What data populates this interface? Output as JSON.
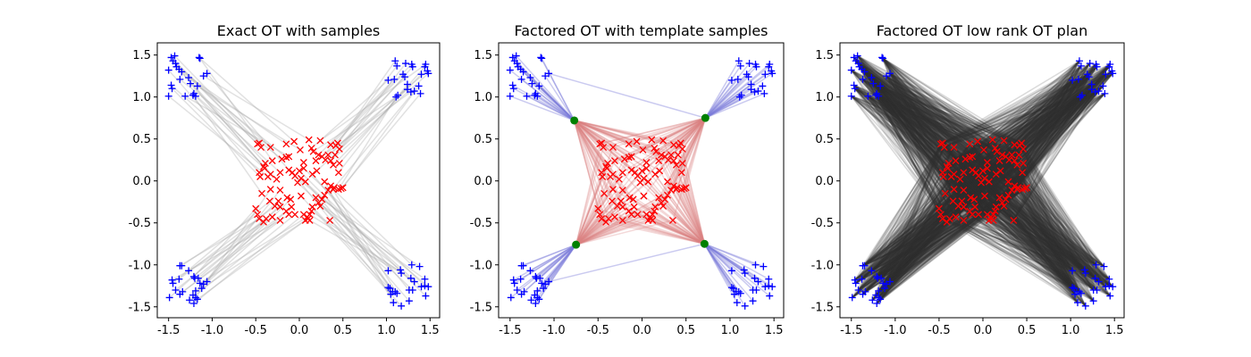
{
  "chart_data": [
    {
      "type": "scatter",
      "title": "Exact OT with samples",
      "plan": "exact",
      "xlim": [
        -1.63,
        1.61
      ],
      "ylim": [
        -1.63,
        1.645
      ],
      "xticks": [
        "-1.5",
        "-1.0",
        "-0.5",
        "0.0",
        "0.5",
        "1.0",
        "1.5"
      ],
      "yticks": [
        "-1.5",
        "-1.0",
        "-0.5",
        "0.0",
        "0.5",
        "1.0",
        "1.5"
      ],
      "grid": false
    },
    {
      "type": "scatter",
      "title": "Factored OT with template samples",
      "plan": "factored",
      "xlim": [
        -1.63,
        1.61
      ],
      "ylim": [
        -1.63,
        1.645
      ],
      "xticks": [
        "-1.5",
        "-1.0",
        "-0.5",
        "0.0",
        "0.5",
        "1.0",
        "1.5"
      ],
      "yticks": [
        "-1.5",
        "-1.0",
        "-0.5",
        "0.0",
        "0.5",
        "1.0",
        "1.5"
      ],
      "grid": false
    },
    {
      "type": "scatter",
      "title": "Factored OT low rank OT plan",
      "plan": "lowrank",
      "xlim": [
        -1.63,
        1.61
      ],
      "ylim": [
        -1.63,
        1.645
      ],
      "xticks": [
        "-1.5",
        "-1.0",
        "-0.5",
        "0.0",
        "0.5",
        "1.0",
        "1.5"
      ],
      "yticks": [
        "-1.5",
        "-1.0",
        "-0.5",
        "0.0",
        "0.5",
        "1.0",
        "1.5"
      ],
      "grid": false
    }
  ],
  "colors": {
    "source": "#0000ff",
    "target": "#ff0000",
    "template": "#008000",
    "exact_line": "#aaaaaa",
    "source_template_line": "#7b7bd9",
    "template_target_line": "#d98080",
    "lowrank_line": "#333333"
  },
  "template_points": [
    [
      -0.77,
      0.72
    ],
    [
      0.72,
      0.75
    ],
    [
      -0.75,
      -0.76
    ],
    [
      0.71,
      -0.75
    ]
  ],
  "template_outliers": [
    {
      "source": [
        -1.06,
        1.28
      ],
      "template": 1
    },
    {
      "source": [
        -1.06,
        -1.2
      ],
      "template": 3
    }
  ],
  "source_points": [
    [
      -1.47,
      1.47
    ],
    [
      -1.43,
      1.49
    ],
    [
      -1.45,
      1.43
    ],
    [
      -1.42,
      1.4
    ],
    [
      -1.41,
      1.36
    ],
    [
      -1.38,
      1.33
    ],
    [
      -1.5,
      1.32
    ],
    [
      -1.35,
      1.3
    ],
    [
      -1.15,
      1.47
    ],
    [
      -1.14,
      1.46
    ],
    [
      -1.47,
      1.14
    ],
    [
      -1.46,
      1.1
    ],
    [
      -1.5,
      1.01
    ],
    [
      -1.37,
      1.21
    ],
    [
      -1.27,
      1.23
    ],
    [
      -1.25,
      1.16
    ],
    [
      -1.31,
      1.01
    ],
    [
      -1.21,
      1.04
    ],
    [
      -1.19,
      1.01
    ],
    [
      -1.17,
      1.13
    ],
    [
      -1.1,
      1.25
    ],
    [
      -1.06,
      1.28
    ],
    [
      -1.22,
      1.02
    ],
    [
      1.1,
      1.43
    ],
    [
      1.12,
      1.37
    ],
    [
      1.22,
      1.4
    ],
    [
      1.29,
      1.39
    ],
    [
      1.3,
      1.36
    ],
    [
      1.45,
      1.39
    ],
    [
      1.44,
      1.36
    ],
    [
      1.47,
      1.31
    ],
    [
      1.48,
      1.28
    ],
    [
      1.4,
      1.27
    ],
    [
      1.19,
      1.27
    ],
    [
      1.21,
      1.24
    ],
    [
      1.02,
      1.2
    ],
    [
      1.09,
      1.21
    ],
    [
      1.24,
      1.15
    ],
    [
      1.24,
      1.09
    ],
    [
      1.28,
      1.06
    ],
    [
      1.37,
      1.13
    ],
    [
      1.39,
      1.04
    ],
    [
      1.13,
      1.02
    ],
    [
      1.11,
      1.0
    ],
    [
      1.32,
      1.07
    ],
    [
      -1.37,
      -1.01
    ],
    [
      -1.35,
      -1.01
    ],
    [
      -1.27,
      -1.07
    ],
    [
      -1.21,
      -1.14
    ],
    [
      -1.16,
      -1.16
    ],
    [
      -1.2,
      -1.16
    ],
    [
      -1.46,
      -1.18
    ],
    [
      -1.45,
      -1.22
    ],
    [
      -1.38,
      -1.17
    ],
    [
      -1.42,
      -1.3
    ],
    [
      -1.34,
      -1.32
    ],
    [
      -1.37,
      -1.35
    ],
    [
      -1.49,
      -1.39
    ],
    [
      -1.26,
      -1.42
    ],
    [
      -1.22,
      -1.36
    ],
    [
      -1.19,
      -1.39
    ],
    [
      -1.17,
      -1.41
    ],
    [
      -1.21,
      -1.46
    ],
    [
      -1.19,
      -1.31
    ],
    [
      -1.1,
      -1.23
    ],
    [
      -1.06,
      -1.2
    ],
    [
      -1.12,
      -1.28
    ],
    [
      -1.14,
      -1.22
    ],
    [
      1.02,
      -1.07
    ],
    [
      1.16,
      -1.06
    ],
    [
      1.17,
      -1.1
    ],
    [
      1.29,
      -1.0
    ],
    [
      1.38,
      -1.02
    ],
    [
      1.44,
      -1.17
    ],
    [
      1.28,
      -1.16
    ],
    [
      1.32,
      -1.2
    ],
    [
      1.02,
      -1.27
    ],
    [
      1.04,
      -1.28
    ],
    [
      1.07,
      -1.32
    ],
    [
      1.1,
      -1.32
    ],
    [
      1.12,
      -1.34
    ],
    [
      1.08,
      -1.45
    ],
    [
      1.17,
      -1.49
    ],
    [
      1.26,
      -1.43
    ],
    [
      1.26,
      -1.3
    ],
    [
      1.3,
      -1.3
    ],
    [
      1.4,
      -1.26
    ],
    [
      1.44,
      -1.25
    ],
    [
      1.48,
      -1.26
    ],
    [
      1.45,
      -1.37
    ],
    [
      1.05,
      -1.35
    ]
  ],
  "target_points": [
    [
      -0.48,
      0.44
    ],
    [
      -0.46,
      0.45
    ],
    [
      -0.33,
      0.4
    ],
    [
      -0.15,
      0.44
    ],
    [
      -0.06,
      0.47
    ],
    [
      0.01,
      0.37
    ],
    [
      0.11,
      0.49
    ],
    [
      0.24,
      0.48
    ],
    [
      0.14,
      0.39
    ],
    [
      0.16,
      0.35
    ],
    [
      0.36,
      0.43
    ],
    [
      0.44,
      0.45
    ],
    [
      0.46,
      0.38
    ],
    [
      0.41,
      0.31
    ],
    [
      0.22,
      0.31
    ],
    [
      0.26,
      0.29
    ],
    [
      0.33,
      0.31
    ],
    [
      -0.31,
      0.24
    ],
    [
      -0.15,
      0.28
    ],
    [
      -0.12,
      0.29
    ],
    [
      -0.39,
      0.21
    ],
    [
      -0.41,
      0.17
    ],
    [
      -0.46,
      0.1
    ],
    [
      -0.45,
      0.05
    ],
    [
      -0.36,
      0.05
    ],
    [
      -0.33,
      0.08
    ],
    [
      -0.22,
      0.1
    ],
    [
      -0.12,
      0.13
    ],
    [
      -0.08,
      0.1
    ],
    [
      -0.05,
      0.06
    ],
    [
      0.05,
      0.22
    ],
    [
      0.05,
      0.15
    ],
    [
      0.02,
      0.03
    ],
    [
      0.07,
      -0.01
    ],
    [
      -0.02,
      -0.02
    ],
    [
      0.15,
      0.08
    ],
    [
      0.19,
      0.24
    ],
    [
      0.36,
      0.24
    ],
    [
      0.39,
      0.19
    ],
    [
      0.45,
      0.1
    ],
    [
      0.46,
      0.21
    ],
    [
      0.29,
      -0.01
    ],
    [
      0.36,
      -0.06
    ],
    [
      0.39,
      -0.1
    ],
    [
      0.45,
      -0.1
    ],
    [
      0.5,
      -0.08
    ],
    [
      0.33,
      -0.11
    ],
    [
      0.29,
      -0.17
    ],
    [
      0.26,
      -0.22
    ],
    [
      0.22,
      -0.26
    ],
    [
      0.19,
      -0.2
    ],
    [
      0.15,
      -0.31
    ],
    [
      0.14,
      -0.36
    ],
    [
      0.12,
      -0.4
    ],
    [
      0.09,
      -0.43
    ],
    [
      0.12,
      -0.47
    ],
    [
      0.35,
      -0.47
    ],
    [
      0.02,
      -0.18
    ],
    [
      -0.1,
      -0.22
    ],
    [
      -0.22,
      -0.11
    ],
    [
      -0.33,
      -0.1
    ],
    [
      -0.43,
      -0.15
    ],
    [
      -0.34,
      -0.24
    ],
    [
      -0.24,
      -0.24
    ],
    [
      -0.14,
      -0.2
    ],
    [
      -0.22,
      -0.31
    ],
    [
      -0.09,
      -0.31
    ],
    [
      -0.5,
      -0.33
    ],
    [
      -0.48,
      -0.4
    ],
    [
      -0.46,
      -0.45
    ],
    [
      -0.41,
      -0.49
    ],
    [
      -0.31,
      -0.43
    ],
    [
      -0.22,
      -0.47
    ],
    [
      -0.12,
      -0.4
    ],
    [
      -0.05,
      -0.4
    ],
    [
      0.05,
      -0.4
    ],
    [
      0.07,
      -0.47
    ],
    [
      -0.15,
      -0.36
    ],
    [
      -0.4,
      0.15
    ],
    [
      0.2,
      0.12
    ],
    [
      0.3,
      0.25
    ],
    [
      -0.28,
      -0.3
    ],
    [
      0.1,
      -0.45
    ],
    [
      0.4,
      -0.08
    ],
    [
      -0.44,
      0.4
    ],
    [
      0.42,
      0.42
    ],
    [
      -0.2,
      0.26
    ],
    [
      0.24,
      -0.3
    ],
    [
      -0.38,
      -0.45
    ],
    [
      0.0,
      0.12
    ],
    [
      0.48,
      -0.09
    ],
    [
      -0.26,
      0.02
    ]
  ]
}
